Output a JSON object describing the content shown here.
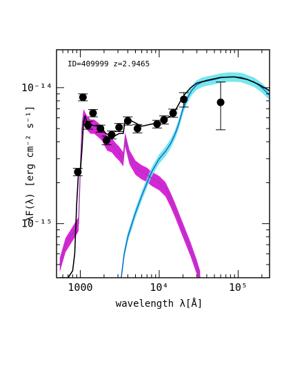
{
  "chart_data": {
    "type": "scatter",
    "annotation": "ID=409999 z=2.9465",
    "xlabel": "wavelength λ[Å]",
    "ylabel": "λF(λ) [erg cm⁻² s⁻¹]",
    "xscale": "log",
    "yscale": "log",
    "xlim": [
      500,
      250000
    ],
    "ylim": [
      4e-16,
      1.9e-14
    ],
    "x_tick_labels": [
      {
        "value": 1000,
        "label": "1000"
      },
      {
        "value": 10000,
        "label": "10⁴"
      },
      {
        "value": 100000,
        "label": "10⁵"
      }
    ],
    "y_tick_labels": [
      {
        "value": 1e-15,
        "label": "10⁻¹⁵"
      },
      {
        "value": 1e-14,
        "label": "10⁻¹⁴"
      }
    ],
    "observed_points": [
      {
        "x": 930,
        "y": 2.4e-15,
        "yerr": 1.5e-16
      },
      {
        "x": 1080,
        "y": 8.5e-15,
        "yerr": 5e-16
      },
      {
        "x": 1250,
        "y": 5.3e-15,
        "yerr": 3.5e-16
      },
      {
        "x": 1450,
        "y": 6.5e-15,
        "yerr": 4e-16
      },
      {
        "x": 1800,
        "y": 5e-15,
        "yerr": 3e-16
      },
      {
        "x": 2150,
        "y": 4.1e-15,
        "yerr": 3e-16
      },
      {
        "x": 2500,
        "y": 4.5e-15,
        "yerr": 3e-16
      },
      {
        "x": 3100,
        "y": 5.1e-15,
        "yerr": 3.5e-16
      },
      {
        "x": 4000,
        "y": 5.7e-15,
        "yerr": 4e-16
      },
      {
        "x": 5300,
        "y": 5e-15,
        "yerr": 3.5e-16
      },
      {
        "x": 9400,
        "y": 5.4e-15,
        "yerr": 3.5e-16
      },
      {
        "x": 11500,
        "y": 5.8e-15,
        "yerr": 4e-16
      },
      {
        "x": 15000,
        "y": 6.5e-15,
        "yerr": 4.5e-16
      },
      {
        "x": 20500,
        "y": 8.2e-15,
        "yerr": 1e-15
      },
      {
        "x": 60000,
        "y": 7.8e-15,
        "yerr_lo": 2.9e-15,
        "yerr_hi": 3.2e-15
      }
    ],
    "series": [
      {
        "role": "host-galaxy-template",
        "color": "#a03cb4",
        "band_color": "#d000d0",
        "x": [
          550,
          650,
          750,
          850,
          950,
          1000,
          1050,
          1100,
          1200,
          1350,
          1500,
          1700,
          1900,
          2050,
          2200,
          2500,
          2800,
          3100,
          3500,
          3700,
          4200,
          5000,
          6000,
          7000,
          8000,
          10000,
          12000,
          14000,
          16000,
          18000,
          20000,
          25000,
          30000,
          33000
        ],
        "y": [
          5e-16,
          7e-16,
          8e-16,
          9e-16,
          1e-15,
          2.5e-15,
          5e-15,
          6.2e-15,
          5.6e-15,
          5.2e-15,
          5.2e-15,
          4.9e-15,
          4.6e-15,
          4.2e-15,
          3.9e-15,
          3.8e-15,
          3.5e-15,
          3.3e-15,
          3e-15,
          4.2e-15,
          3.1e-15,
          2.6e-15,
          2.4e-15,
          2.3e-15,
          2.15e-15,
          2e-15,
          1.8e-15,
          1.5e-15,
          1.25e-15,
          1.05e-15,
          9e-16,
          6.5e-16,
          4.8e-16,
          4e-16
        ],
        "band_frac": 0.12
      },
      {
        "role": "agn-torus-template",
        "color": "#0b62c8",
        "band_color": "#5fe3ea",
        "x": [
          3300,
          3600,
          4000,
          5000,
          6000,
          7000,
          8000,
          10000,
          12000,
          14000,
          16000,
          18000,
          20000,
          23000,
          26000,
          30000,
          35000,
          40000,
          50000,
          60000,
          75000,
          90000,
          110000,
          130000,
          160000,
          200000,
          250000
        ],
        "y": [
          4e-16,
          6e-16,
          8e-16,
          1.2e-15,
          1.6e-15,
          2e-15,
          2.4e-15,
          3e-15,
          3.4e-15,
          3.9e-15,
          4.6e-15,
          5.6e-15,
          7e-15,
          8.5e-15,
          9.6e-15,
          1.05e-14,
          1.1e-14,
          1.12e-14,
          1.15e-14,
          1.18e-14,
          1.2e-14,
          1.2e-14,
          1.19e-14,
          1.15e-14,
          1.1e-14,
          1e-14,
          8.8e-15
        ],
        "band_frac": 0.08
      },
      {
        "role": "total-model",
        "color": "#000000",
        "x": [
          550,
          700,
          800,
          850,
          900,
          950,
          1000,
          1050,
          1100,
          1150,
          1200,
          1400,
          1700,
          1900,
          2100,
          2300,
          2500,
          2700,
          3100,
          3500,
          3700,
          4200,
          5000,
          6000,
          8000,
          10000,
          12000,
          14000,
          16000,
          18000,
          20000,
          25000,
          30000,
          40000,
          60000,
          90000,
          130000,
          180000,
          250000
        ],
        "y": [
          4e-16,
          4e-16,
          4.5e-16,
          6e-16,
          1.4e-15,
          2.4e-15,
          2.4e-15,
          3.5e-15,
          5.6e-15,
          6.2e-15,
          5.7e-15,
          5.3e-15,
          5.2e-15,
          5e-15,
          4.6e-15,
          4.5e-15,
          4.6e-15,
          4.4e-15,
          4.6e-15,
          4.6e-15,
          5.8e-15,
          5.8e-15,
          5.5e-15,
          5.2e-15,
          5.4e-15,
          5.5e-15,
          5.9e-15,
          6.2e-15,
          6.8e-15,
          7.7e-15,
          8.6e-15,
          1e-14,
          1.08e-14,
          1.13e-14,
          1.19e-14,
          1.2e-14,
          1.15e-14,
          1.06e-14,
          9.5e-15
        ]
      }
    ]
  }
}
